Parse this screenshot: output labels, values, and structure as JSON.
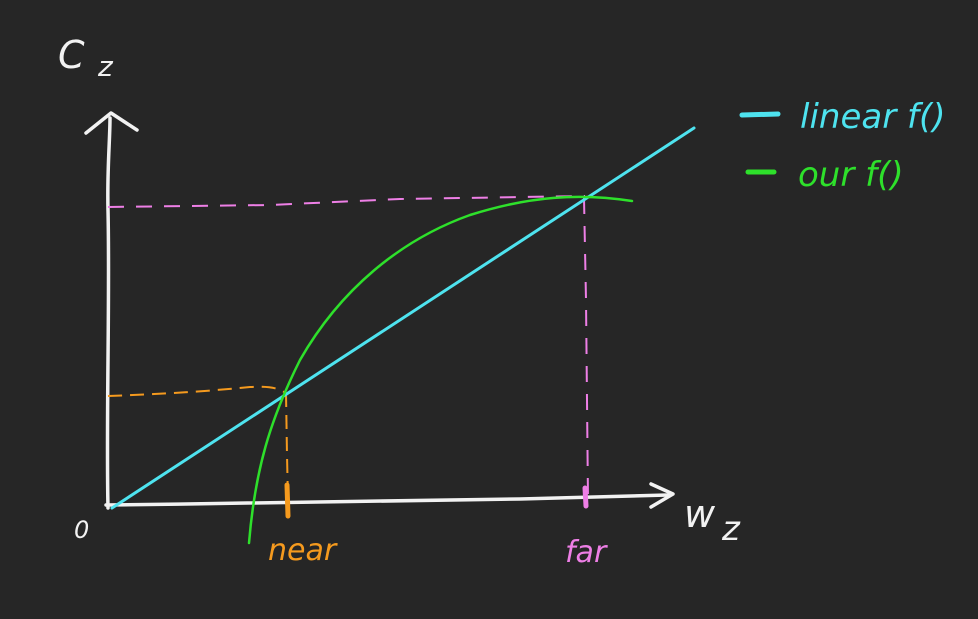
{
  "axes": {
    "y_label": "C",
    "y_sub": "z",
    "x_label": "w",
    "x_sub": "z",
    "origin_label": "0"
  },
  "markers": {
    "near_label": "near",
    "far_label": "far"
  },
  "legend": {
    "items": [
      {
        "label": "linear f()",
        "color": "#4ee3ef"
      },
      {
        "label": "our f()",
        "color": "#2ee02b"
      }
    ]
  },
  "colors": {
    "background": "#262626",
    "axes": "#f2f2f2",
    "linear": "#4ee3ef",
    "ours": "#2ee02b",
    "near": "#f59a1e",
    "far": "#ee7fe6"
  }
}
